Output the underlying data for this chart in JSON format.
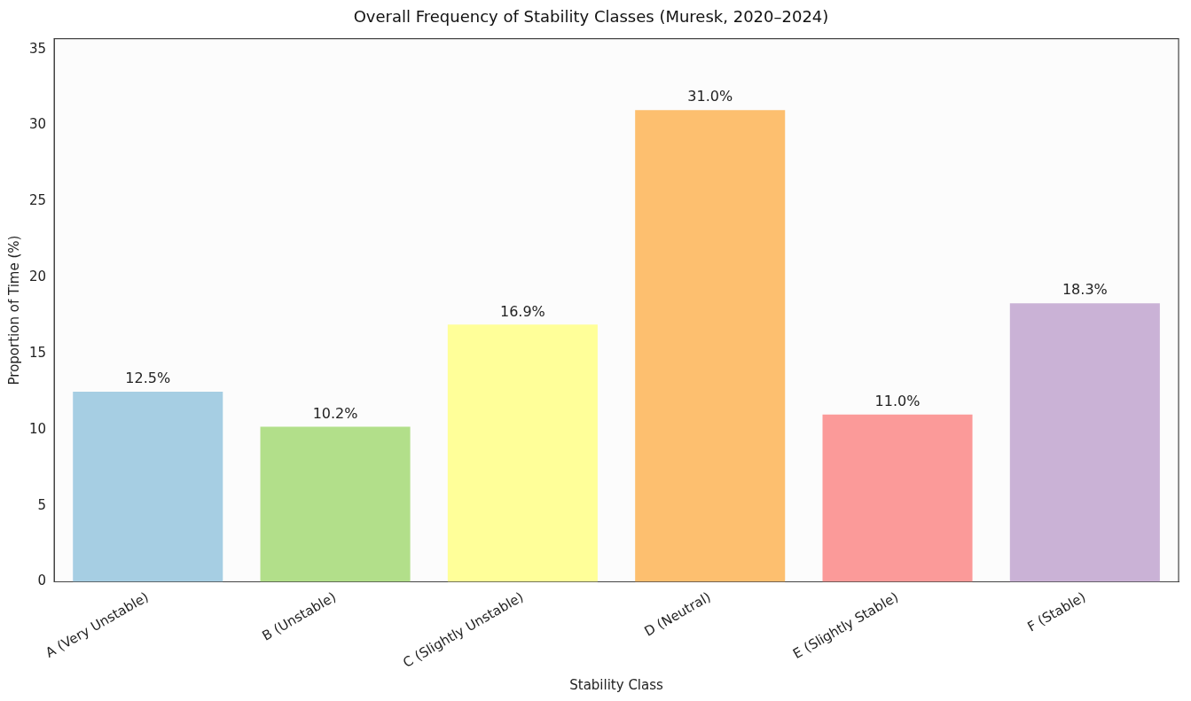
{
  "chart_data": {
    "type": "bar",
    "title": "Overall Frequency of Stability Classes (Muresk, 2020–2024)",
    "xlabel": "Stability Class",
    "ylabel": "Proportion of Time (%)",
    "categories": [
      "A (Very Unstable)",
      "B (Unstable)",
      "C (Slightly Unstable)",
      "D (Neutral)",
      "E (Slightly Stable)",
      "F (Stable)"
    ],
    "values": [
      12.5,
      10.2,
      16.9,
      31.0,
      11.0,
      18.3
    ],
    "colors": [
      "#a6cee3",
      "#b2df8a",
      "#ffff99",
      "#fdbf6f",
      "#fb9a99",
      "#cab2d6"
    ],
    "value_labels": [
      "12.5%",
      "10.2%",
      "16.9%",
      "31.0%",
      "11.0%",
      "18.3%"
    ],
    "ylim": [
      0,
      35.7
    ],
    "yticks": [
      0,
      5,
      10,
      15,
      20,
      25,
      30,
      35
    ],
    "grid": false,
    "legend": false
  }
}
